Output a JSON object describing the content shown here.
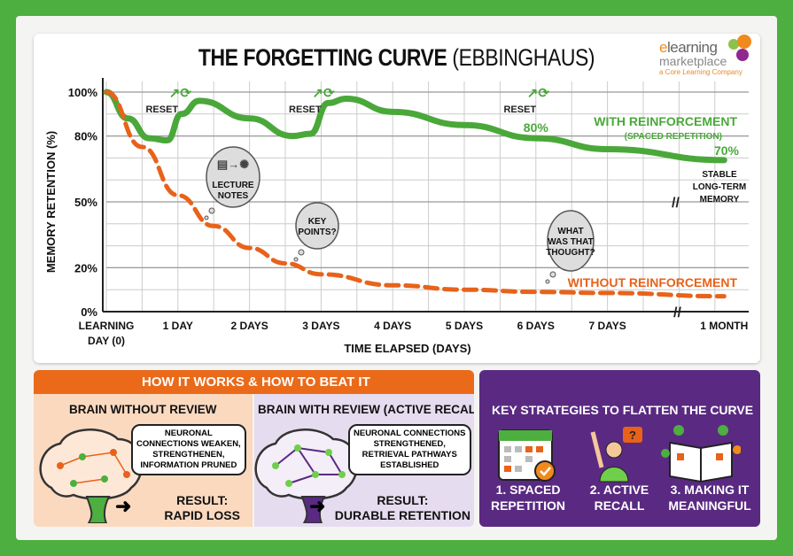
{
  "header": {
    "title": "THE FORGETTING CURVE",
    "title_paren": "(EBBINGHAUS)"
  },
  "logo": {
    "line1a": "e",
    "line1b": "learning",
    "line2": "marketplace",
    "line3": "a Core Learning Company"
  },
  "chart_data": {
    "type": "line",
    "title": "THE FORGETTING CURVE (EBBINGHAUS)",
    "xlabel": "TIME ELAPSED (DAYS)",
    "ylabel": "MEMORY RETENTION (%)",
    "ylim": [
      0,
      100
    ],
    "yticks": [
      "100%",
      "80%",
      "50%",
      "20%",
      "0%"
    ],
    "ytick_values": [
      100,
      80,
      50,
      20,
      0
    ],
    "xticks": [
      {
        "line1": "LEARNING",
        "line2": "DAY (0)",
        "x": 0
      },
      {
        "line1": "1 DAY",
        "x": 1
      },
      {
        "line1": "2 DAYS",
        "x": 2
      },
      {
        "line1": "3 DAYS",
        "x": 3
      },
      {
        "line1": "4 DAYS",
        "x": 4
      },
      {
        "line1": "5 DAYS",
        "x": 5
      },
      {
        "line1": "6 DAYS",
        "x": 6
      },
      {
        "line1": "7 DAYS",
        "x": 7
      },
      {
        "line1": "1 MONTH",
        "x": 30
      }
    ],
    "grid": true,
    "series": [
      {
        "name": "WITH REINFORCEMENT",
        "subname": "(SPACED REPETITION)",
        "color": "#4aa83a",
        "style": "solid",
        "x": [
          0,
          0.3,
          0.6,
          0.85,
          1.05,
          1.3,
          2,
          2.6,
          2.85,
          3.1,
          3.35,
          4,
          5,
          6,
          7,
          30
        ],
        "y": [
          100,
          88,
          79,
          78,
          90,
          96,
          88,
          80,
          81,
          95,
          97,
          91,
          85,
          79,
          74,
          69
        ]
      },
      {
        "name": "WITHOUT REINFORCEMENT",
        "color": "#e8621a",
        "style": "dashed",
        "x": [
          0,
          0.5,
          1,
          1.5,
          2,
          2.5,
          3,
          4,
          5,
          6,
          7,
          30
        ],
        "y": [
          100,
          75,
          53,
          39,
          29,
          22,
          17,
          12,
          10,
          9,
          8.5,
          7
        ]
      }
    ],
    "annotations": {
      "resets": [
        {
          "label": "RESET",
          "x": 1
        },
        {
          "label": "RESET",
          "x": 3
        },
        {
          "label": "RESET",
          "x": 6
        }
      ],
      "value_labels": [
        {
          "text": "80%",
          "x": 6
        },
        {
          "text": "70%",
          "x": 30
        }
      ],
      "thoughts": [
        {
          "lines": [
            "LECTURE",
            "NOTES"
          ]
        },
        {
          "lines": [
            "KEY",
            "POINTS?"
          ]
        },
        {
          "lines": [
            "WHAT",
            "WAS THAT",
            "THOUGHT?"
          ]
        }
      ],
      "stable": [
        "STABLE",
        "LONG-TERM",
        "MEMORY"
      ]
    }
  },
  "how": {
    "header": "HOW IT WORKS & HOW TO BEAT IT",
    "without": {
      "title": "BRAIN WITHOUT REVIEW",
      "bubble": [
        "NEURONAL",
        "CONNECTIONS WEAKEN,",
        "STRENGTHENEN,",
        "INFORMATION PRUNED"
      ],
      "result": [
        "RESULT:",
        "RAPID LOSS"
      ]
    },
    "with": {
      "title": "BRAIN WITH REVIEW (ACTIVE RECALL)",
      "bubble": [
        "NEURONAL CONNECTIONS",
        "STRENGTHENED,",
        "RETRIEVAL PATHWAYS",
        "ESTABLISHED"
      ],
      "result": [
        "RESULT:",
        "DURABLE RETENTION"
      ]
    }
  },
  "strategies": {
    "title": "KEY STRATEGIES TO FLATTEN THE CURVE",
    "items": [
      {
        "l1": "1. SPACED",
        "l2": "REPETITION",
        "icon": "calendar-icon"
      },
      {
        "l1": "2. ACTIVE",
        "l2": "RECALL",
        "icon": "person-raising-hand-icon"
      },
      {
        "l1": "3. MAKING IT",
        "l2": "MEANINGFUL",
        "icon": "open-book-icon"
      }
    ]
  }
}
